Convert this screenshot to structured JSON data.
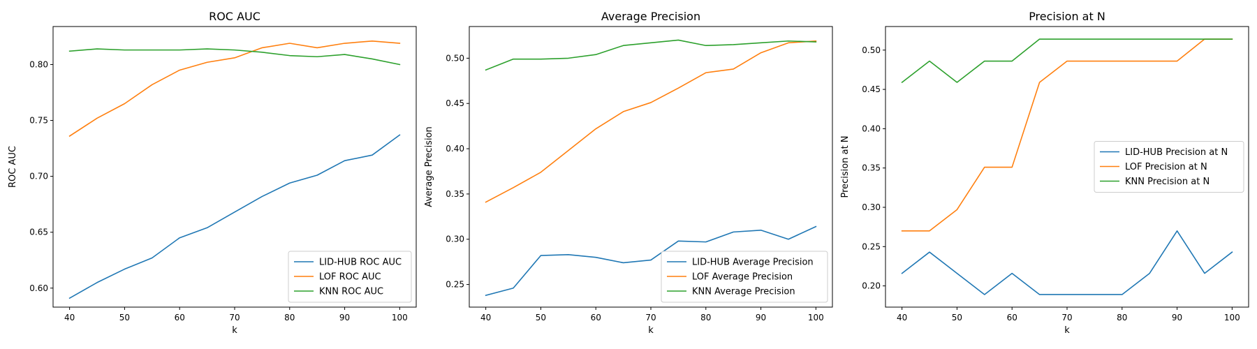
{
  "chart_data": [
    {
      "type": "line",
      "title": "ROC AUC",
      "xlabel": "k",
      "ylabel": "ROC AUC",
      "x": [
        40,
        45,
        50,
        55,
        60,
        65,
        70,
        75,
        80,
        85,
        90,
        95,
        100
      ],
      "xlim": [
        37,
        103
      ],
      "ylim": [
        0.583,
        0.834
      ],
      "xticks": [
        40,
        50,
        60,
        70,
        80,
        90,
        100
      ],
      "yticks": [
        0.6,
        0.65,
        0.7,
        0.75,
        0.8
      ],
      "ytick_decimals": 2,
      "legend_position": "lower right",
      "grid": false,
      "series": [
        {
          "name": "LID-HUB ROC AUC",
          "color": "#1f77b4",
          "values": [
            0.591,
            0.605,
            0.617,
            0.627,
            0.645,
            0.654,
            0.668,
            0.682,
            0.694,
            0.701,
            0.714,
            0.719,
            0.737
          ]
        },
        {
          "name": "LOF ROC AUC",
          "color": "#ff7f0e",
          "values": [
            0.736,
            0.752,
            0.765,
            0.782,
            0.795,
            0.802,
            0.806,
            0.815,
            0.819,
            0.815,
            0.819,
            0.821,
            0.819
          ]
        },
        {
          "name": "KNN ROC AUC",
          "color": "#2ca02c",
          "values": [
            0.812,
            0.814,
            0.813,
            0.813,
            0.813,
            0.814,
            0.813,
            0.811,
            0.808,
            0.807,
            0.809,
            0.805,
            0.8
          ]
        }
      ]
    },
    {
      "type": "line",
      "title": "Average Precision",
      "xlabel": "k",
      "ylabel": "Average Precision",
      "x": [
        40,
        45,
        50,
        55,
        60,
        65,
        70,
        75,
        80,
        85,
        90,
        95,
        100
      ],
      "xlim": [
        37,
        103
      ],
      "ylim": [
        0.225,
        0.535
      ],
      "xticks": [
        40,
        50,
        60,
        70,
        80,
        90,
        100
      ],
      "yticks": [
        0.25,
        0.3,
        0.35,
        0.4,
        0.45,
        0.5
      ],
      "ytick_decimals": 2,
      "legend_position": "lower right",
      "grid": false,
      "series": [
        {
          "name": "LID-HUB Average Precision",
          "color": "#1f77b4",
          "values": [
            0.238,
            0.246,
            0.282,
            0.283,
            0.28,
            0.274,
            0.277,
            0.298,
            0.297,
            0.308,
            0.31,
            0.3,
            0.314
          ]
        },
        {
          "name": "LOF Average Precision",
          "color": "#ff7f0e",
          "values": [
            0.341,
            0.357,
            0.374,
            0.398,
            0.422,
            0.441,
            0.451,
            0.467,
            0.484,
            0.488,
            0.506,
            0.517,
            0.519
          ]
        },
        {
          "name": "KNN Average Precision",
          "color": "#2ca02c",
          "values": [
            0.487,
            0.499,
            0.499,
            0.5,
            0.504,
            0.514,
            0.517,
            0.52,
            0.514,
            0.515,
            0.517,
            0.519,
            0.518
          ]
        }
      ]
    },
    {
      "type": "line",
      "title": "Precision at N",
      "xlabel": "k",
      "ylabel": "Precision at N",
      "x": [
        40,
        45,
        50,
        55,
        60,
        65,
        70,
        75,
        80,
        85,
        90,
        95,
        100
      ],
      "xlim": [
        37,
        103
      ],
      "ylim": [
        0.173,
        0.53
      ],
      "xticks": [
        40,
        50,
        60,
        70,
        80,
        90,
        100
      ],
      "yticks": [
        0.2,
        0.25,
        0.3,
        0.35,
        0.4,
        0.45,
        0.5
      ],
      "ytick_decimals": 2,
      "legend_position": "center right",
      "grid": false,
      "series": [
        {
          "name": "LID-HUB Precision at N",
          "color": "#1f77b4",
          "values": [
            0.216,
            0.243,
            0.216,
            0.189,
            0.216,
            0.189,
            0.189,
            0.189,
            0.189,
            0.216,
            0.27,
            0.216,
            0.243
          ]
        },
        {
          "name": "LOF Precision at N",
          "color": "#ff7f0e",
          "values": [
            0.27,
            0.27,
            0.297,
            0.351,
            0.351,
            0.459,
            0.486,
            0.486,
            0.486,
            0.486,
            0.486,
            0.514,
            0.514
          ]
        },
        {
          "name": "KNN Precision at N",
          "color": "#2ca02c",
          "values": [
            0.459,
            0.486,
            0.459,
            0.486,
            0.486,
            0.514,
            0.514,
            0.514,
            0.514,
            0.514,
            0.514,
            0.514,
            0.514
          ]
        }
      ]
    }
  ]
}
